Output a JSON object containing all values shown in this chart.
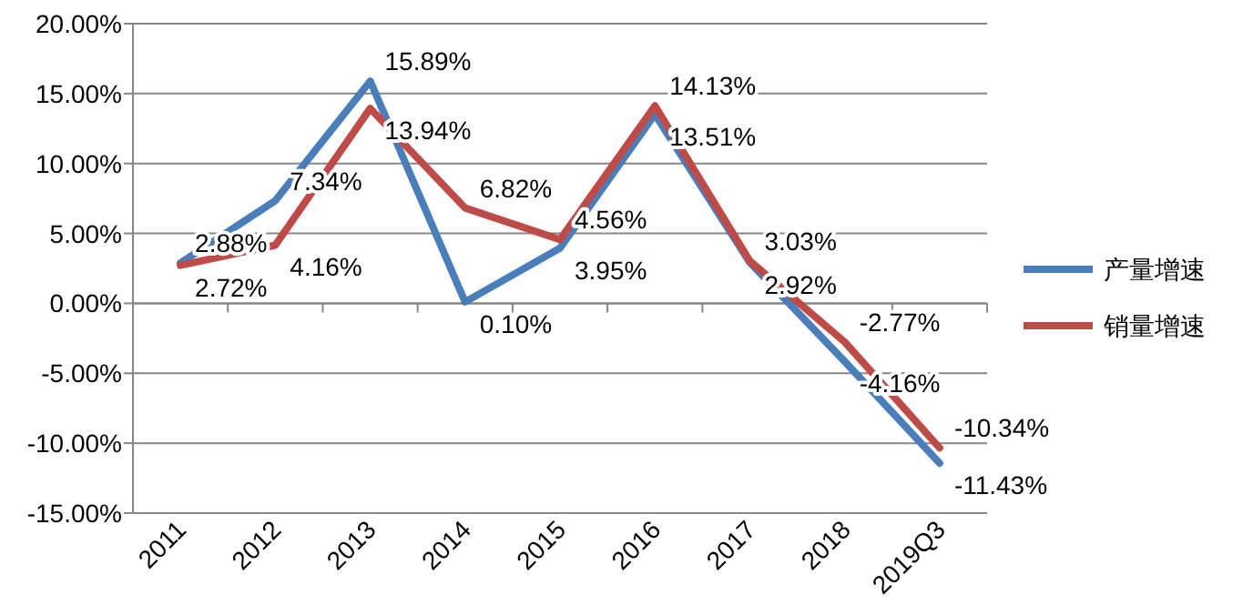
{
  "chart_data": {
    "type": "line",
    "categories": [
      "2011",
      "2012",
      "2013",
      "2014",
      "2015",
      "2016",
      "2017",
      "2018",
      "2019Q3"
    ],
    "series": [
      {
        "name": "产量增速",
        "color": "#4a7ebb",
        "values": [
          2.88,
          7.34,
          15.89,
          0.1,
          3.95,
          13.51,
          2.92,
          -4.16,
          -11.43
        ],
        "value_labels": [
          "2.88%",
          "7.34%",
          "15.89%",
          "0.10%",
          "3.95%",
          "13.51%",
          "2.92%",
          "-4.16%",
          "-11.43%"
        ]
      },
      {
        "name": "销量增速",
        "color": "#be4b48",
        "values": [
          2.72,
          4.16,
          13.94,
          6.82,
          4.56,
          14.13,
          3.03,
          -2.77,
          -10.34
        ],
        "value_labels": [
          "2.72%",
          "4.16%",
          "13.94%",
          "6.82%",
          "4.56%",
          "14.13%",
          "3.03%",
          "-2.77%",
          "-10.34%"
        ]
      }
    ],
    "ylim": [
      -15,
      20
    ],
    "yticks": [
      {
        "value": -15,
        "label": "-15.00%"
      },
      {
        "value": -10,
        "label": "-10.00%"
      },
      {
        "value": -5,
        "label": "-5.00%"
      },
      {
        "value": 0,
        "label": "0.00%"
      },
      {
        "value": 5,
        "label": "5.00%"
      },
      {
        "value": 10,
        "label": "10.00%"
      },
      {
        "value": 15,
        "label": "15.00%"
      },
      {
        "value": 20,
        "label": "20.00%"
      }
    ],
    "grid": "y",
    "legend": "right"
  }
}
